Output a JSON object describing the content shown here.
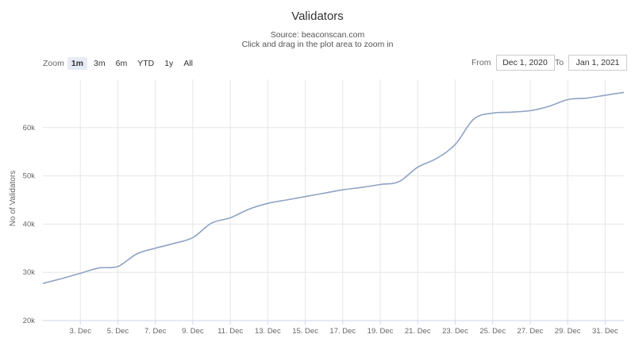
{
  "chart_data": {
    "type": "line",
    "title": "Validators",
    "subtitle_lines": [
      "Source: beaconscan.com",
      "Click and drag in the plot area to zoom in"
    ],
    "ylabel": "No of Validators",
    "xlabel": "",
    "ylim": [
      20000,
      70000
    ],
    "y_ticks": [
      20000,
      30000,
      40000,
      50000,
      60000
    ],
    "y_tick_labels": [
      "20k",
      "30k",
      "40k",
      "50k",
      "60k"
    ],
    "x_range": [
      "2020-12-01",
      "2021-01-01"
    ],
    "x_ticks": [
      "2020-12-03",
      "2020-12-05",
      "2020-12-07",
      "2020-12-09",
      "2020-12-11",
      "2020-12-13",
      "2020-12-15",
      "2020-12-17",
      "2020-12-19",
      "2020-12-21",
      "2020-12-23",
      "2020-12-25",
      "2020-12-27",
      "2020-12-29",
      "2020-12-31"
    ],
    "x_tick_labels": [
      "3. Dec",
      "5. Dec",
      "7. Dec",
      "9. Dec",
      "11. Dec",
      "13. Dec",
      "15. Dec",
      "17. Dec",
      "19. Dec",
      "21. Dec",
      "23. Dec",
      "25. Dec",
      "27. Dec",
      "29. Dec",
      "31. Dec"
    ],
    "grid": true,
    "series_color": "#8fa3c5",
    "series": [
      {
        "x": [
          "2020-12-01",
          "2020-12-02",
          "2020-12-03",
          "2020-12-04",
          "2020-12-05",
          "2020-12-06",
          "2020-12-07",
          "2020-12-08",
          "2020-12-09",
          "2020-12-10",
          "2020-12-11",
          "2020-12-12",
          "2020-12-13",
          "2020-12-14",
          "2020-12-15",
          "2020-12-16",
          "2020-12-17",
          "2020-12-18",
          "2020-12-19",
          "2020-12-20",
          "2020-12-21",
          "2020-12-22",
          "2020-12-23",
          "2020-12-24",
          "2020-12-25",
          "2020-12-26",
          "2020-12-27",
          "2020-12-28",
          "2020-12-29",
          "2020-12-30",
          "2020-12-31",
          "2021-01-01"
        ],
        "values": [
          27700,
          28700,
          29800,
          30900,
          31200,
          33800,
          35000,
          36000,
          37200,
          40200,
          41300,
          43100,
          44300,
          45000,
          45700,
          46400,
          47100,
          47600,
          48200,
          48800,
          51800,
          53600,
          56500,
          61800,
          63000,
          63200,
          63500,
          64400,
          65800,
          66100,
          66700,
          67300
        ]
      }
    ]
  },
  "zoom": {
    "label": "Zoom",
    "buttons": [
      {
        "label": "1m",
        "active": true
      },
      {
        "label": "3m",
        "active": false
      },
      {
        "label": "6m",
        "active": false
      },
      {
        "label": "YTD",
        "active": false
      },
      {
        "label": "1y",
        "active": false
      },
      {
        "label": "All",
        "active": false
      }
    ]
  },
  "range": {
    "from_label": "From",
    "from_value": "Dec 1, 2020",
    "to_label": "To",
    "to_value": "Jan 1, 2021"
  }
}
